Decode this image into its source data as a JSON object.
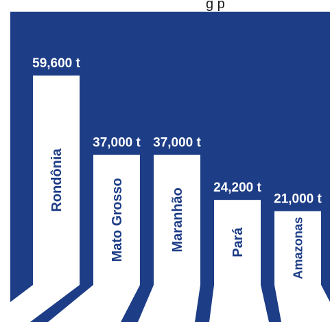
{
  "header": {
    "partial_text": "g   p"
  },
  "colors": {
    "panel": "#1d3d86",
    "bar": "#ffffff",
    "label": "#1d3d86"
  },
  "chart_data": {
    "type": "bar",
    "orientation": "vertical",
    "categories": [
      "Rondônia",
      "Mato Grosso",
      "Maranhão",
      "Pará",
      "Amazonas"
    ],
    "values": [
      59600,
      37000,
      37000,
      24200,
      21000
    ],
    "value_labels": [
      "59,600 t",
      "37,000 t",
      "37,000 t",
      "24,200 t",
      "21,000 t"
    ],
    "category_label_orientation": "vertical",
    "grid": false,
    "legend": "none"
  }
}
